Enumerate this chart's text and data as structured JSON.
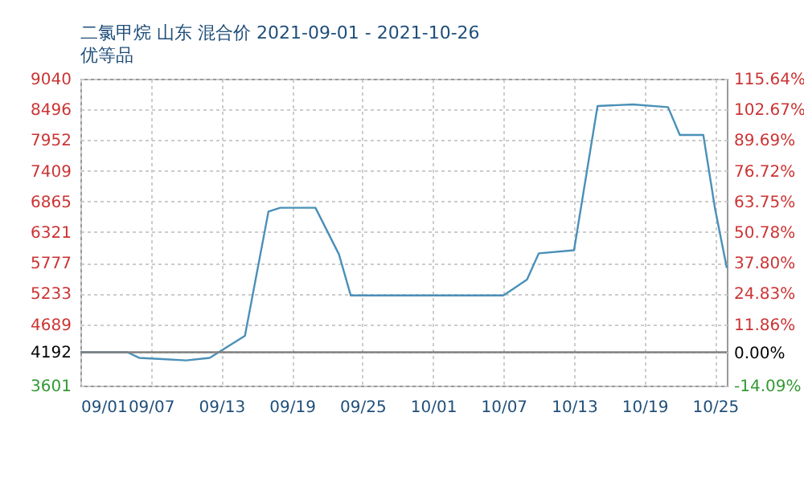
{
  "chart_data": {
    "type": "line",
    "title": "二氯甲烷 山东 混合价 2021-09-01 - 2021-10-26",
    "subtitle": "优等品",
    "series": [
      {
        "color": "#4a90b8",
        "x": [
          "2021-09-01",
          "2021-09-05",
          "2021-09-06",
          "2021-09-08",
          "2021-09-10",
          "2021-09-12",
          "2021-09-15",
          "2021-09-17",
          "2021-09-18",
          "2021-09-21",
          "2021-09-23",
          "2021-09-24",
          "2021-10-07",
          "2021-10-09",
          "2021-10-10",
          "2021-10-13",
          "2021-10-15",
          "2021-10-18",
          "2021-10-21",
          "2021-10-22",
          "2021-10-24",
          "2021-10-25",
          "2021-10-26"
        ],
        "values": [
          4192,
          4192,
          4093,
          4070,
          4047,
          4093,
          4483,
          6685,
          6753,
          6753,
          5927,
          5200,
          5200,
          5480,
          5945,
          6001,
          8556,
          8584,
          8536,
          8043,
          8043,
          6733,
          5688
        ]
      }
    ],
    "xlim": [
      "2021-09-01",
      "2021-10-26"
    ],
    "xticks": [
      {
        "value": "2021-09-01",
        "label": "09/01"
      },
      {
        "value": "2021-09-07",
        "label": "09/07"
      },
      {
        "value": "2021-09-13",
        "label": "09/13"
      },
      {
        "value": "2021-09-19",
        "label": "09/19"
      },
      {
        "value": "2021-09-25",
        "label": "09/25"
      },
      {
        "value": "2021-10-01",
        "label": "10/01"
      },
      {
        "value": "2021-10-07",
        "label": "10/07"
      },
      {
        "value": "2021-10-13",
        "label": "10/13"
      },
      {
        "value": "2021-10-19",
        "label": "10/19"
      },
      {
        "value": "2021-10-25",
        "label": "10/25"
      }
    ],
    "ylim": [
      3601,
      9040
    ],
    "yticks": [
      3601,
      4192,
      4689,
      5233,
      5777,
      6321,
      6865,
      7409,
      7952,
      8496,
      9040
    ],
    "y2lim": [
      -14.09,
      115.64
    ],
    "y2ticks": [
      {
        "value": -14.09,
        "label": "-14.09%"
      },
      {
        "value": 0,
        "label": "0.00%"
      },
      {
        "value": 11.86,
        "label": "11.86%"
      },
      {
        "value": 24.83,
        "label": "24.83%"
      },
      {
        "value": 37.8,
        "label": "37.80%"
      },
      {
        "value": 50.78,
        "label": "50.78%"
      },
      {
        "value": 63.75,
        "label": "63.75%"
      },
      {
        "value": 76.72,
        "label": "76.72%"
      },
      {
        "value": 89.69,
        "label": "89.69%"
      },
      {
        "value": 102.67,
        "label": "102.67%"
      },
      {
        "value": 115.64,
        "label": "115.64%"
      }
    ],
    "ref_lines": [
      {
        "axis": "y2",
        "value": 0,
        "color": "#808080"
      }
    ],
    "grid": true,
    "marker": "none",
    "line_style": "solid"
  }
}
